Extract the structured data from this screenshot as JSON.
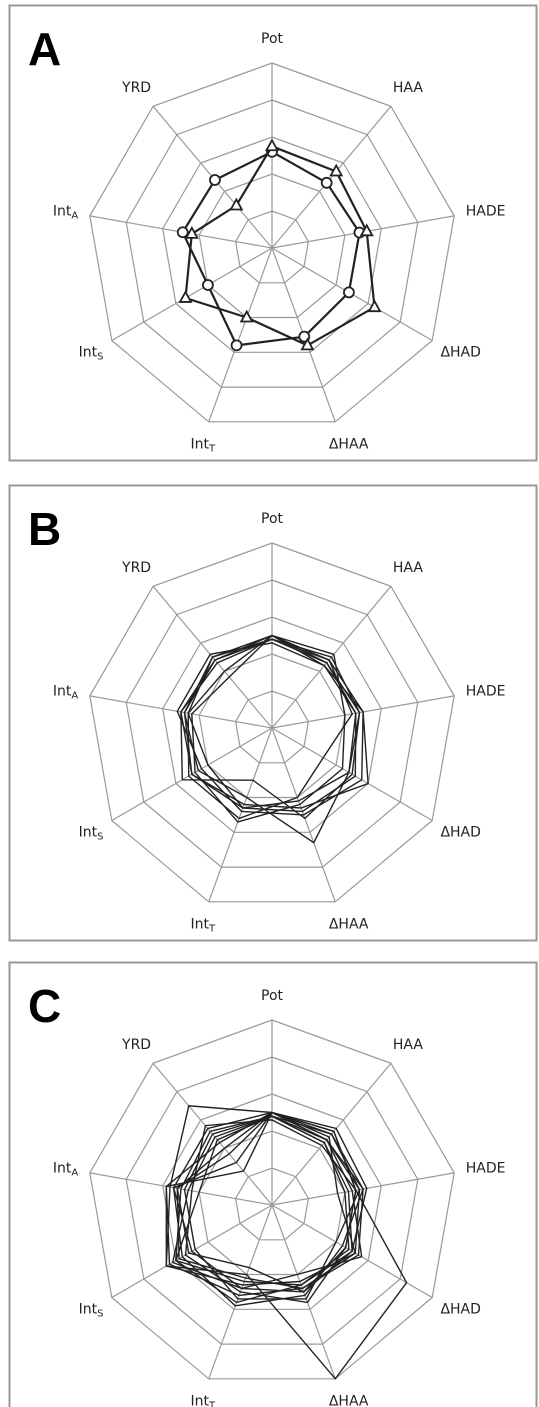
{
  "chart_data": [
    {
      "type": "radar",
      "label": "A",
      "categories": [
        "Pot",
        "HAA",
        "HADE",
        "ΔHAD",
        "ΔHAA",
        {
          "text": "Int",
          "subscript": "T"
        },
        {
          "text": "Int",
          "subscript": "S"
        },
        {
          "text": "Int",
          "subscript": "A"
        },
        "YRD"
      ],
      "rlim": [
        0,
        5
      ],
      "rticks": [
        1,
        2,
        3,
        4,
        5
      ],
      "grid": true,
      "series": [
        {
          "color": "#222222",
          "marker": "circle",
          "values": [
            2.6,
            2.3,
            2.4,
            2.4,
            2.55,
            2.8,
            2.0,
            2.45,
            2.4
          ]
        },
        {
          "color": "#222222",
          "marker": "triangle",
          "values": [
            2.75,
            2.7,
            2.6,
            3.2,
            2.8,
            2.0,
            2.7,
            2.2,
            1.5
          ]
        }
      ]
    },
    {
      "type": "radar",
      "label": "B",
      "categories": [
        "Pot",
        "HAA",
        "HADE",
        "ΔHAD",
        "ΔHAA",
        {
          "text": "Int",
          "subscript": "T"
        },
        {
          "text": "Int",
          "subscript": "S"
        },
        {
          "text": "Int",
          "subscript": "A"
        },
        "YRD"
      ],
      "rlim": [
        0,
        5
      ],
      "rticks": [
        1,
        2,
        3,
        4,
        5
      ],
      "grid": true,
      "series": [
        {
          "color": "#222222",
          "values": [
            2.5,
            2.3,
            2.3,
            2.6,
            2.4,
            2.3,
            2.5,
            2.5,
            2.4
          ]
        },
        {
          "color": "#222222",
          "values": [
            2.4,
            2.5,
            2.4,
            2.4,
            3.3,
            2.0,
            2.3,
            2.4,
            2.5
          ]
        },
        {
          "color": "#222222",
          "values": [
            2.5,
            2.4,
            2.2,
            1.6,
            2.0,
            2.6,
            2.6,
            2.3,
            2.0
          ]
        },
        {
          "color": "#222222",
          "values": [
            2.3,
            2.2,
            2.5,
            2.8,
            2.5,
            2.4,
            2.2,
            2.6,
            2.6
          ]
        },
        {
          "color": "#222222",
          "values": [
            2.5,
            2.6,
            2.0,
            2.2,
            2.2,
            2.7,
            2.4,
            2.2,
            1.8
          ]
        },
        {
          "color": "#222222",
          "values": [
            2.4,
            2.3,
            2.4,
            2.5,
            2.6,
            1.5,
            2.8,
            2.5,
            2.3
          ]
        },
        {
          "color": "#222222",
          "values": [
            2.5,
            2.2,
            2.3,
            2.4,
            2.1,
            2.3,
            2.0,
            2.3,
            2.5
          ]
        },
        {
          "color": "#222222",
          "values": [
            2.4,
            2.4,
            2.5,
            3.0,
            2.3,
            2.2,
            2.5,
            2.4,
            2.4
          ]
        }
      ]
    },
    {
      "type": "radar",
      "label": "C",
      "categories": [
        "Pot",
        "HAA",
        "HADE",
        "ΔHAD",
        "ΔHAA",
        {
          "text": "Int",
          "subscript": "T"
        },
        {
          "text": "Int",
          "subscript": "S"
        },
        {
          "text": "Int",
          "subscript": "A"
        },
        "YRD"
      ],
      "rlim": [
        0,
        5
      ],
      "rticks": [
        1,
        2,
        3,
        4,
        5
      ],
      "grid": true,
      "series": [
        {
          "color": "#222222",
          "values": [
            2.5,
            2.6,
            2.3,
            4.2,
            5.0,
            2.0,
            3.3,
            2.8,
            3.5
          ]
        },
        {
          "color": "#222222",
          "values": [
            2.5,
            2.3,
            2.4,
            2.6,
            2.4,
            2.6,
            3.2,
            2.9,
            2.2
          ]
        },
        {
          "color": "#222222",
          "values": [
            2.4,
            2.2,
            2.0,
            2.4,
            2.3,
            2.2,
            3.0,
            2.5,
            2.6
          ]
        },
        {
          "color": "#222222",
          "values": [
            2.5,
            2.5,
            2.5,
            2.2,
            2.6,
            2.9,
            2.8,
            2.7,
            1.5
          ]
        },
        {
          "color": "#222222",
          "values": [
            2.4,
            2.3,
            2.2,
            2.8,
            2.0,
            2.4,
            3.1,
            2.3,
            2.4
          ]
        },
        {
          "color": "#222222",
          "values": [
            2.5,
            2.7,
            2.6,
            2.5,
            2.5,
            1.8,
            2.6,
            2.6,
            2.0
          ]
        },
        {
          "color": "#222222",
          "values": [
            2.3,
            2.1,
            2.3,
            2.3,
            2.8,
            2.5,
            2.7,
            2.2,
            2.8
          ]
        },
        {
          "color": "#222222",
          "values": [
            2.5,
            2.4,
            1.8,
            2.6,
            2.2,
            2.3,
            3.3,
            2.9,
            1.2
          ]
        },
        {
          "color": "#222222",
          "values": [
            2.4,
            2.5,
            2.4,
            2.0,
            2.7,
            2.7,
            2.4,
            2.4,
            2.5
          ]
        },
        {
          "color": "#222222",
          "values": [
            2.5,
            2.3,
            2.5,
            2.7,
            2.4,
            2.1,
            2.9,
            2.6,
            1.8
          ]
        },
        {
          "color": "#222222",
          "values": [
            2.4,
            2.2,
            2.1,
            2.5,
            2.3,
            2.8,
            3.0,
            2.0,
            2.3
          ]
        },
        {
          "color": "#222222",
          "values": [
            2.5,
            2.6,
            2.3,
            2.3,
            2.5,
            2.4,
            2.5,
            2.7,
            2.7
          ]
        }
      ]
    }
  ]
}
